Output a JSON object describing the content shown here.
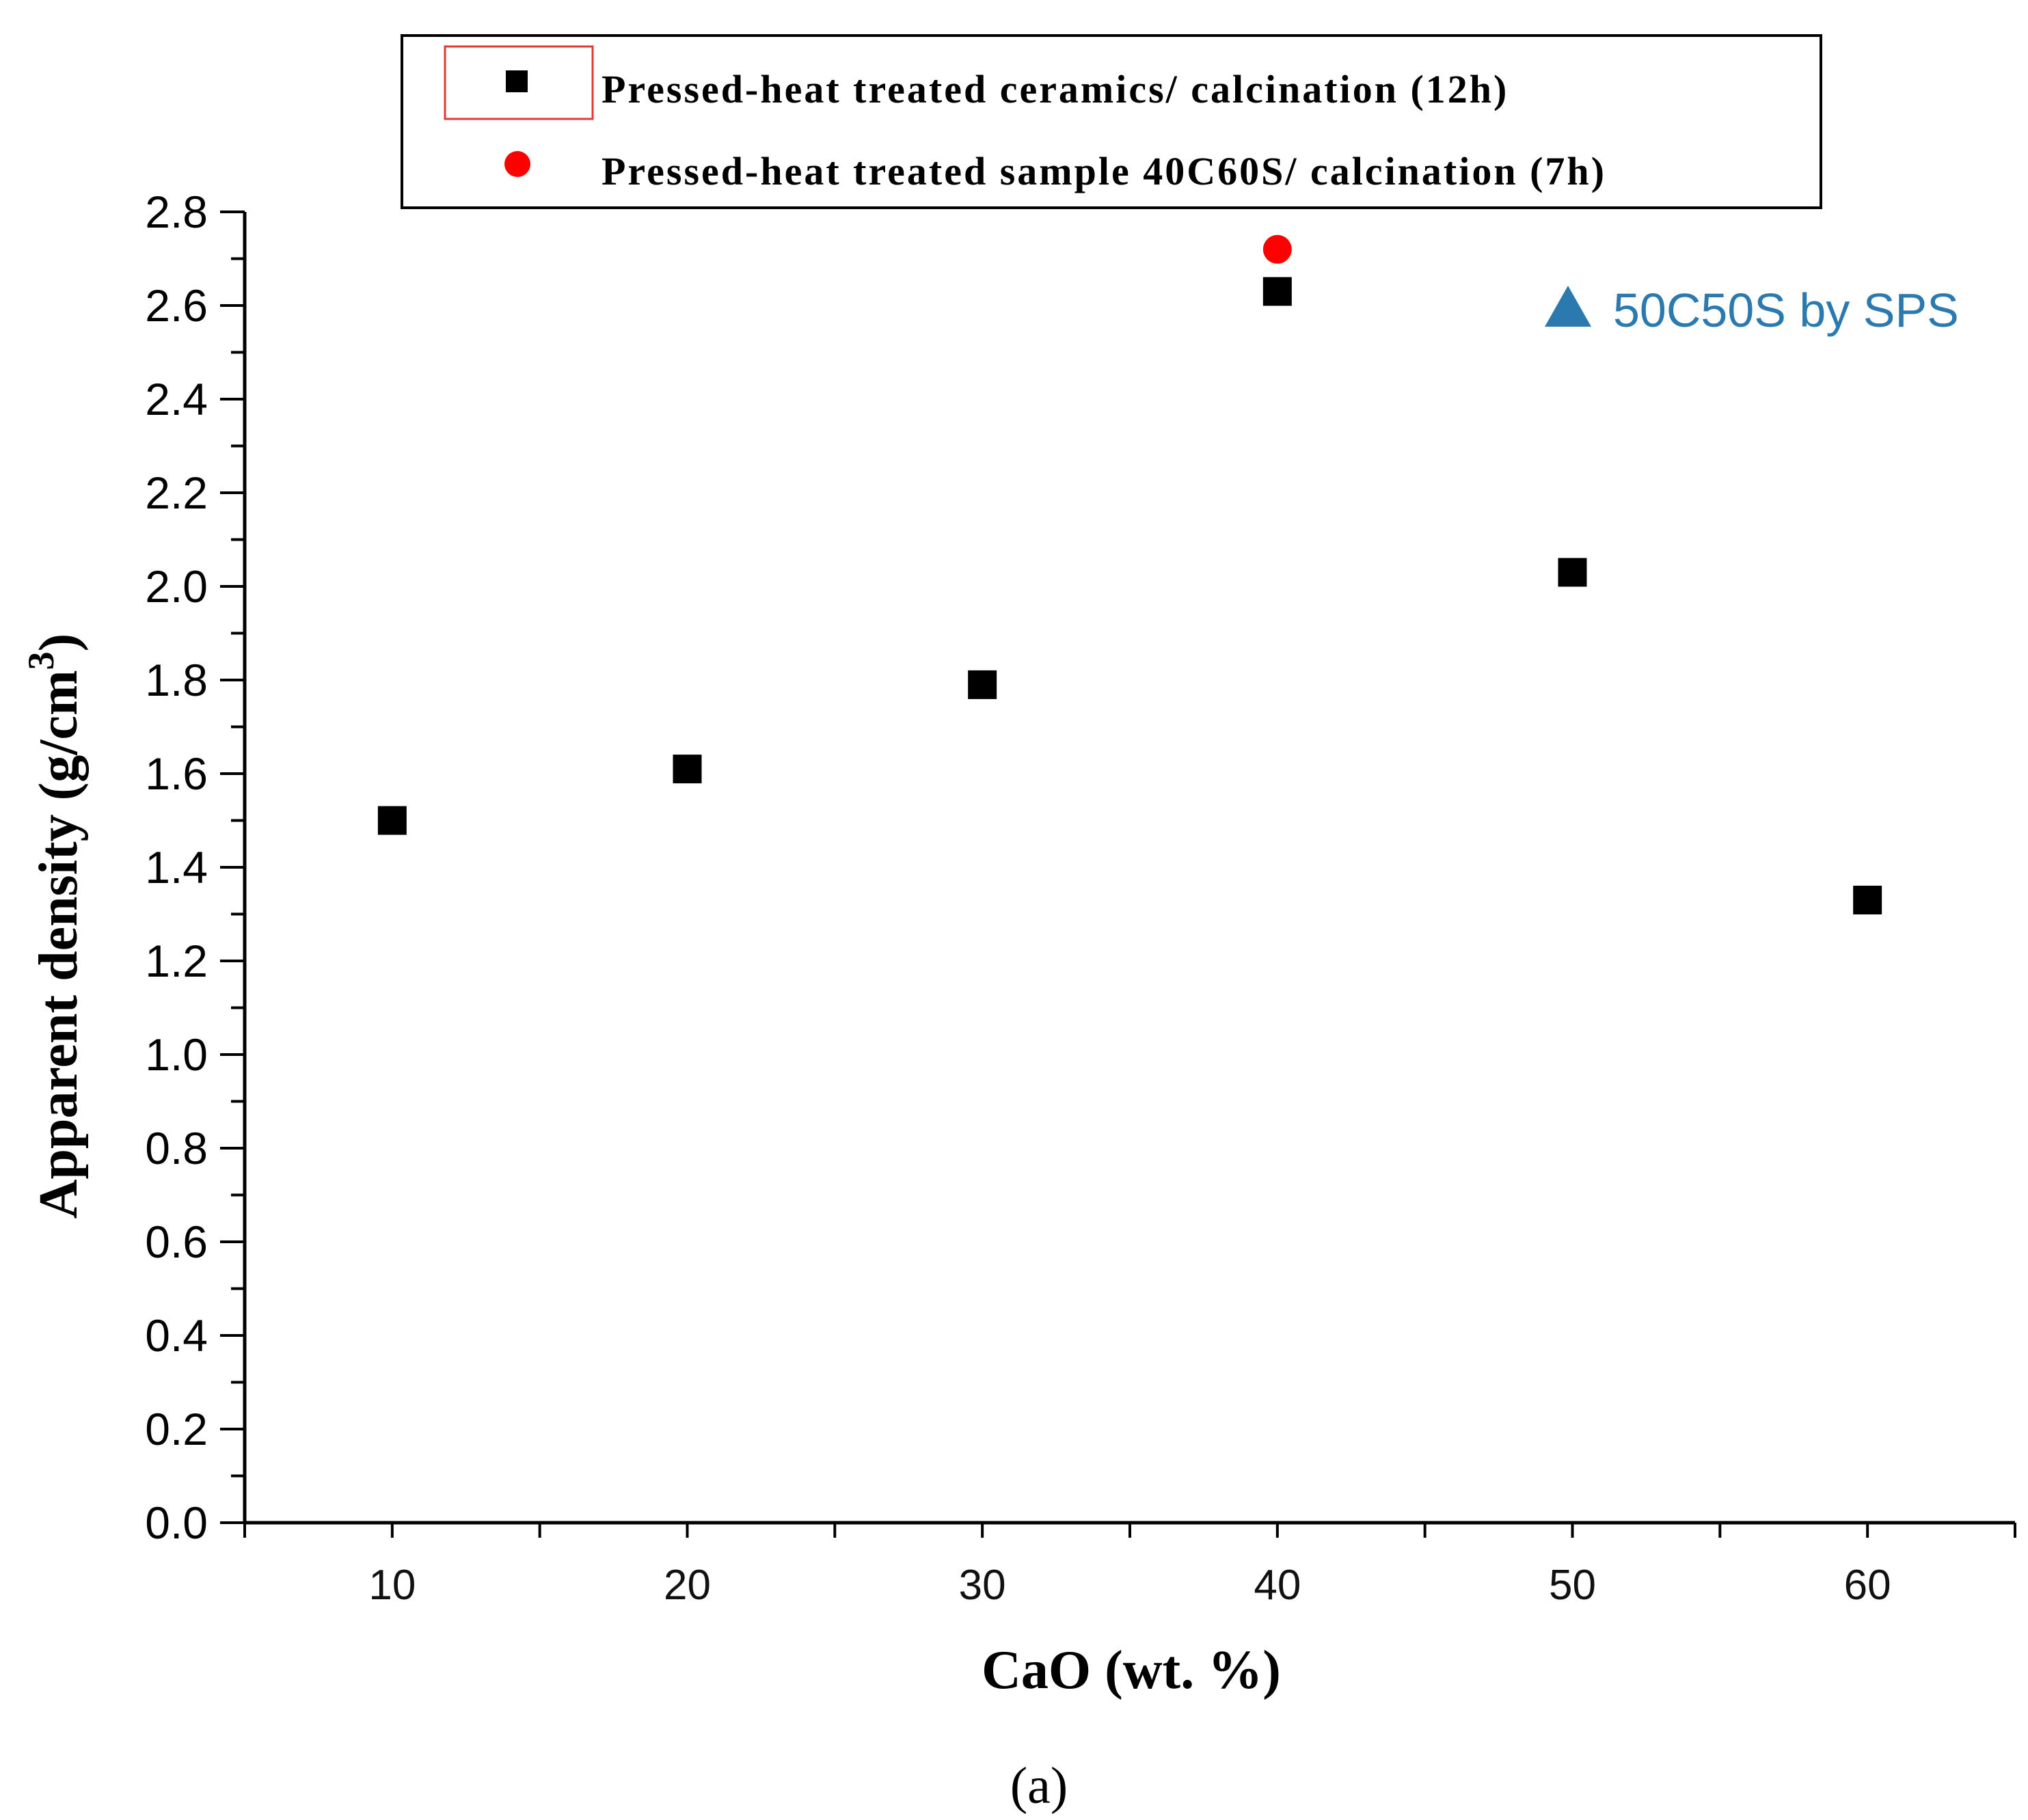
{
  "chart_data": {
    "type": "scatter",
    "title": "",
    "xlabel": "CaO (wt. %)",
    "ylabel": "Apparent density (g/cm",
    "ylabel_superscript": "3",
    "ylabel_close": ")",
    "xlim": [
      5,
      65
    ],
    "ylim": [
      0.0,
      2.8
    ],
    "x_ticks": [
      10,
      20,
      30,
      40,
      50,
      60
    ],
    "x_tick_labels": [
      "10",
      "20",
      "30",
      "40",
      "50",
      "60"
    ],
    "y_ticks": [
      0.0,
      0.2,
      0.4,
      0.6,
      0.8,
      1.0,
      1.2,
      1.4,
      1.6,
      1.8,
      2.0,
      2.2,
      2.4,
      2.6,
      2.8
    ],
    "y_tick_labels": [
      "0.0",
      "0.2",
      "0.4",
      "0.6",
      "0.8",
      "1.0",
      "1.2",
      "1.4",
      "1.6",
      "1.8",
      "2.0",
      "2.2",
      "2.4",
      "2.6",
      "2.8"
    ],
    "grid": false,
    "legend_position": "top",
    "series": [
      {
        "name": "Pressed-heat treated ceramics/ calcination (12h)",
        "marker": "square",
        "color": "#000000",
        "x": [
          10,
          20,
          30,
          40,
          50,
          60
        ],
        "y": [
          1.5,
          1.61,
          1.79,
          2.63,
          2.03,
          1.33
        ]
      },
      {
        "name": "Pressed-heat treated sample 40C60S/ calcination (7h)",
        "marker": "circle",
        "color": "#ff0000",
        "x": [
          40
        ],
        "y": [
          2.72
        ]
      }
    ],
    "annotations": [
      {
        "text": "50C50S by SPS",
        "marker": "triangle",
        "color": "#2a7ab0"
      }
    ],
    "caption": "(a)"
  }
}
